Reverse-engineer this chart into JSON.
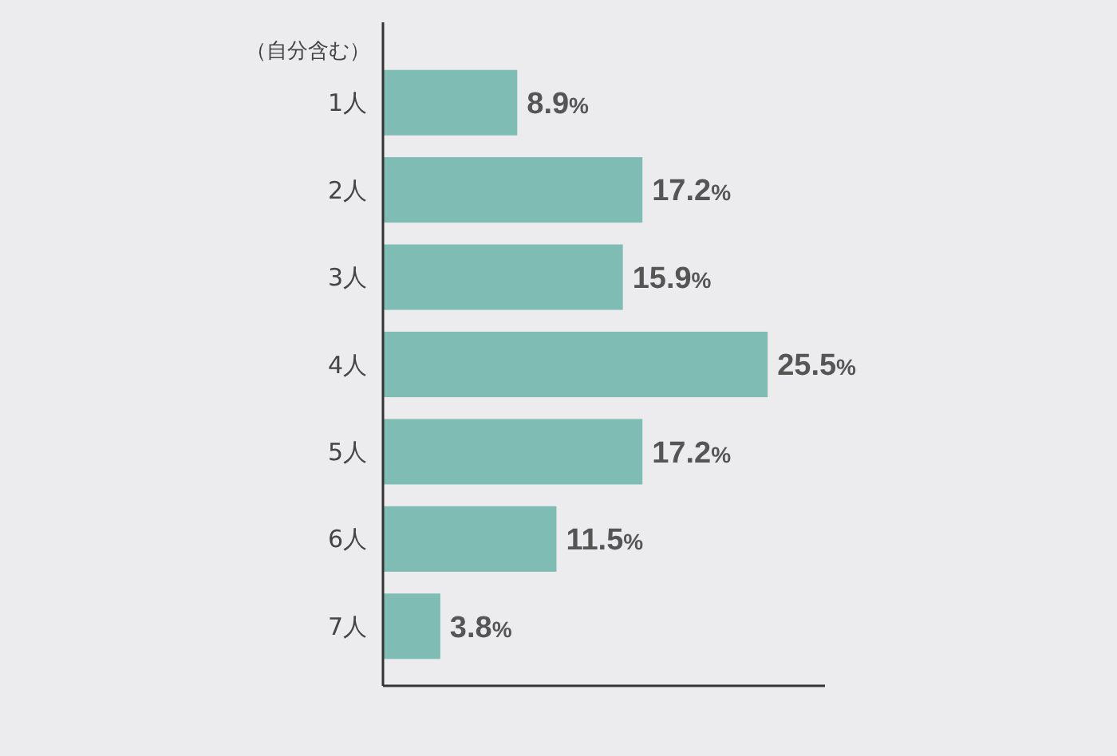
{
  "chart_data": {
    "type": "bar",
    "orientation": "horizontal",
    "ylabel": "（自分含む）",
    "categories": [
      "1人",
      "2人",
      "3人",
      "4人",
      "5人",
      "6人",
      "7人"
    ],
    "values": [
      8.9,
      17.2,
      15.9,
      25.5,
      17.2,
      11.5,
      3.8
    ],
    "value_labels": [
      "8.9%",
      "17.2%",
      "15.9%",
      "25.5%",
      "17.2%",
      "11.5%",
      "3.8%"
    ],
    "color": "#7fbdb4",
    "xlim": [
      0,
      29.3
    ],
    "tick_labels": "y"
  }
}
